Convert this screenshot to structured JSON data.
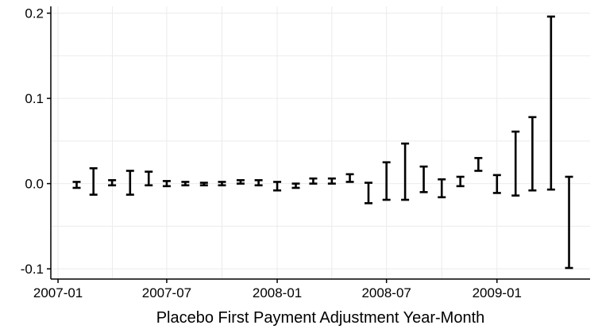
{
  "chart_data": {
    "type": "errorbar",
    "title": "",
    "xlabel": "Placebo First Payment Adjustment Year-Month",
    "ylabel": "",
    "xlim": [
      "2006-12-20",
      "2009-06-05"
    ],
    "ylim": [
      -0.112,
      0.208
    ],
    "x_ticks": [
      "2007-01",
      "2007-07",
      "2008-01",
      "2008-07",
      "2009-01"
    ],
    "x_tick_dates": [
      "2007-01-01",
      "2007-07-01",
      "2008-01-01",
      "2008-07-01",
      "2009-01-01"
    ],
    "y_ticks": [
      -0.1,
      0.0,
      0.1,
      0.2
    ],
    "y_tick_labels": [
      "-0.1",
      "0.0",
      "0.1",
      "0.2"
    ],
    "grid": true,
    "series": [
      {
        "points": [
          {
            "x": "2007-02-01",
            "low": -0.005,
            "high": 0.002
          },
          {
            "x": "2007-03-01",
            "low": -0.013,
            "high": 0.018
          },
          {
            "x": "2007-04-01",
            "low": -0.002,
            "high": 0.004
          },
          {
            "x": "2007-05-01",
            "low": -0.013,
            "high": 0.015
          },
          {
            "x": "2007-06-01",
            "low": -0.002,
            "high": 0.014
          },
          {
            "x": "2007-07-01",
            "low": -0.003,
            "high": 0.003
          },
          {
            "x": "2007-08-01",
            "low": -0.002,
            "high": 0.002
          },
          {
            "x": "2007-09-01",
            "low": -0.002,
            "high": 0.001
          },
          {
            "x": "2007-10-01",
            "low": -0.002,
            "high": 0.002
          },
          {
            "x": "2007-11-01",
            "low": 0.0,
            "high": 0.004
          },
          {
            "x": "2007-12-01",
            "low": -0.002,
            "high": 0.004
          },
          {
            "x": "2008-01-01",
            "low": -0.008,
            "high": 0.002
          },
          {
            "x": "2008-02-01",
            "low": -0.005,
            "high": 0.0
          },
          {
            "x": "2008-03-01",
            "low": 0.0,
            "high": 0.006
          },
          {
            "x": "2008-04-01",
            "low": 0.0,
            "high": 0.006
          },
          {
            "x": "2008-05-01",
            "low": 0.002,
            "high": 0.011
          },
          {
            "x": "2008-06-01",
            "low": -0.023,
            "high": 0.001
          },
          {
            "x": "2008-07-01",
            "low": -0.019,
            "high": 0.025
          },
          {
            "x": "2008-08-01",
            "low": -0.019,
            "high": 0.047
          },
          {
            "x": "2008-09-01",
            "low": -0.01,
            "high": 0.02
          },
          {
            "x": "2008-10-01",
            "low": -0.016,
            "high": 0.005
          },
          {
            "x": "2008-11-01",
            "low": -0.003,
            "high": 0.008
          },
          {
            "x": "2008-12-01",
            "low": 0.015,
            "high": 0.03
          },
          {
            "x": "2009-01-01",
            "low": -0.011,
            "high": 0.01
          },
          {
            "x": "2009-02-01",
            "low": -0.014,
            "high": 0.061
          },
          {
            "x": "2009-03-01",
            "low": -0.008,
            "high": 0.078
          },
          {
            "x": "2009-04-01",
            "low": -0.007,
            "high": 0.196
          },
          {
            "x": "2009-05-01",
            "low": -0.099,
            "high": 0.008
          }
        ]
      }
    ]
  }
}
